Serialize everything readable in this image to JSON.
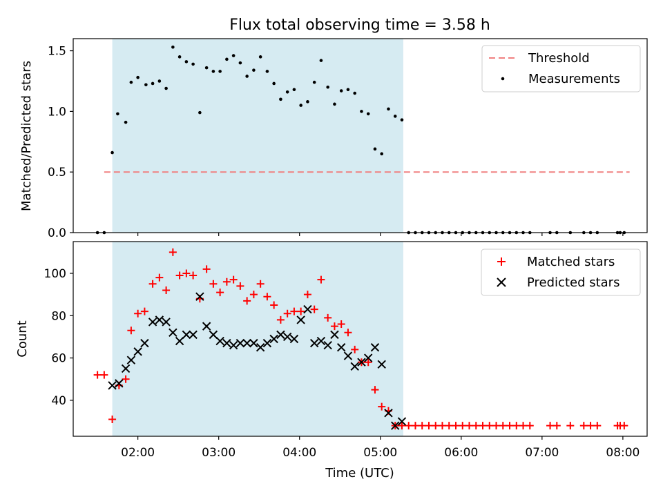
{
  "chart_data": [
    {
      "type": "scatter",
      "title": "Flux total observing time = 3.58 h",
      "xlabel": "",
      "ylabel": "Matched/Predicted stars",
      "xlim": [
        "01:12",
        "08:18"
      ],
      "ylim": [
        0,
        1.6
      ],
      "xticks": [
        "02:00",
        "03:00",
        "04:00",
        "05:00",
        "06:00",
        "07:00",
        "08:00"
      ],
      "yticks": [
        0.0,
        0.5,
        1.0,
        1.5
      ],
      "ytick_labels": [
        "0.0",
        "0.5",
        "1.0",
        "1.5"
      ],
      "grid": false,
      "legend_position": "top-right",
      "shaded_region": {
        "start": "01:41",
        "end": "05:17",
        "color": "#add8e6"
      },
      "series": [
        {
          "name": "Threshold",
          "kind": "dashed-line",
          "color": "#f08080",
          "points": [
            [
              "01:35",
              0.5
            ],
            [
              "08:05",
              0.5
            ]
          ]
        },
        {
          "name": "Measurements",
          "kind": "dots",
          "color": "#000000",
          "points": [
            [
              "01:30",
              0.0
            ],
            [
              "01:35",
              0.0
            ],
            [
              "01:41",
              0.66
            ],
            [
              "01:45",
              0.98
            ],
            [
              "01:51",
              0.91
            ],
            [
              "01:55",
              1.24
            ],
            [
              "02:00",
              1.28
            ],
            [
              "02:06",
              1.22
            ],
            [
              "02:11",
              1.23
            ],
            [
              "02:16",
              1.25
            ],
            [
              "02:21",
              1.19
            ],
            [
              "02:26",
              1.53
            ],
            [
              "02:31",
              1.45
            ],
            [
              "02:36",
              1.41
            ],
            [
              "02:41",
              1.39
            ],
            [
              "02:46",
              0.99
            ],
            [
              "02:51",
              1.36
            ],
            [
              "02:56",
              1.33
            ],
            [
              "03:01",
              1.33
            ],
            [
              "03:06",
              1.43
            ],
            [
              "03:11",
              1.46
            ],
            [
              "03:16",
              1.4
            ],
            [
              "03:21",
              1.29
            ],
            [
              "03:26",
              1.34
            ],
            [
              "03:31",
              1.45
            ],
            [
              "03:36",
              1.33
            ],
            [
              "03:41",
              1.23
            ],
            [
              "03:46",
              1.1
            ],
            [
              "03:51",
              1.16
            ],
            [
              "03:56",
              1.18
            ],
            [
              "04:01",
              1.05
            ],
            [
              "04:06",
              1.08
            ],
            [
              "04:11",
              1.24
            ],
            [
              "04:16",
              1.42
            ],
            [
              "04:21",
              1.2
            ],
            [
              "04:26",
              1.06
            ],
            [
              "04:31",
              1.17
            ],
            [
              "04:36",
              1.18
            ],
            [
              "04:41",
              1.15
            ],
            [
              "04:46",
              1.0
            ],
            [
              "04:51",
              0.98
            ],
            [
              "04:56",
              0.69
            ],
            [
              "05:01",
              0.65
            ],
            [
              "05:06",
              1.02
            ],
            [
              "05:11",
              0.96
            ],
            [
              "05:16",
              0.93
            ],
            [
              "05:21",
              0.0
            ],
            [
              "05:26",
              0.0
            ],
            [
              "05:31",
              0.0
            ],
            [
              "05:36",
              0.0
            ],
            [
              "05:41",
              0.0
            ],
            [
              "05:46",
              0.0
            ],
            [
              "05:51",
              0.0
            ],
            [
              "05:56",
              0.0
            ],
            [
              "06:01",
              0.0
            ],
            [
              "06:06",
              0.0
            ],
            [
              "06:11",
              0.0
            ],
            [
              "06:16",
              0.0
            ],
            [
              "06:21",
              0.0
            ],
            [
              "06:26",
              0.0
            ],
            [
              "06:31",
              0.0
            ],
            [
              "06:36",
              0.0
            ],
            [
              "06:41",
              0.0
            ],
            [
              "06:46",
              0.0
            ],
            [
              "06:51",
              0.0
            ],
            [
              "07:06",
              0.0
            ],
            [
              "07:11",
              0.0
            ],
            [
              "07:21",
              0.0
            ],
            [
              "07:31",
              0.0
            ],
            [
              "07:36",
              0.0
            ],
            [
              "07:41",
              0.0
            ],
            [
              "07:56",
              0.0
            ],
            [
              "07:58",
              0.0
            ],
            [
              "08:01",
              0.0
            ]
          ]
        }
      ]
    },
    {
      "type": "scatter",
      "title": "",
      "xlabel": "Time (UTC)",
      "ylabel": "Count",
      "xlim": [
        "01:12",
        "08:18"
      ],
      "ylim": [
        23,
        115
      ],
      "xticks": [
        "02:00",
        "03:00",
        "04:00",
        "05:00",
        "06:00",
        "07:00",
        "08:00"
      ],
      "yticks": [
        40,
        60,
        80,
        100
      ],
      "ytick_labels": [
        "40",
        "60",
        "80",
        "100"
      ],
      "grid": false,
      "legend_position": "top-right",
      "shaded_region": {
        "start": "01:41",
        "end": "05:17",
        "color": "#add8e6"
      },
      "series": [
        {
          "name": "Matched stars",
          "kind": "plus",
          "color": "#ff0000",
          "points": [
            [
              "01:30",
              52
            ],
            [
              "01:35",
              52
            ],
            [
              "01:41",
              31
            ],
            [
              "01:46",
              47
            ],
            [
              "01:51",
              50
            ],
            [
              "01:55",
              73
            ],
            [
              "02:00",
              81
            ],
            [
              "02:05",
              82
            ],
            [
              "02:11",
              95
            ],
            [
              "02:16",
              98
            ],
            [
              "02:21",
              92
            ],
            [
              "02:26",
              110
            ],
            [
              "02:31",
              99
            ],
            [
              "02:36",
              100
            ],
            [
              "02:41",
              99
            ],
            [
              "02:46",
              88
            ],
            [
              "02:51",
              102
            ],
            [
              "02:56",
              95
            ],
            [
              "03:01",
              91
            ],
            [
              "03:06",
              96
            ],
            [
              "03:11",
              97
            ],
            [
              "03:16",
              94
            ],
            [
              "03:21",
              87
            ],
            [
              "03:26",
              90
            ],
            [
              "03:31",
              95
            ],
            [
              "03:36",
              89
            ],
            [
              "03:41",
              85
            ],
            [
              "03:46",
              78
            ],
            [
              "03:51",
              81
            ],
            [
              "03:56",
              82
            ],
            [
              "04:01",
              82
            ],
            [
              "04:06",
              90
            ],
            [
              "04:11",
              83
            ],
            [
              "04:16",
              97
            ],
            [
              "04:21",
              79
            ],
            [
              "04:26",
              75
            ],
            [
              "04:31",
              76
            ],
            [
              "04:36",
              72
            ],
            [
              "04:41",
              64
            ],
            [
              "04:46",
              58
            ],
            [
              "04:51",
              58
            ],
            [
              "04:56",
              45
            ],
            [
              "05:01",
              37
            ],
            [
              "05:06",
              35
            ],
            [
              "05:11",
              28
            ],
            [
              "05:16",
              28
            ],
            [
              "05:21",
              28
            ],
            [
              "05:26",
              28
            ],
            [
              "05:31",
              28
            ],
            [
              "05:36",
              28
            ],
            [
              "05:41",
              28
            ],
            [
              "05:46",
              28
            ],
            [
              "05:51",
              28
            ],
            [
              "05:56",
              28
            ],
            [
              "06:01",
              28
            ],
            [
              "06:06",
              28
            ],
            [
              "06:11",
              28
            ],
            [
              "06:16",
              28
            ],
            [
              "06:21",
              28
            ],
            [
              "06:26",
              28
            ],
            [
              "06:31",
              28
            ],
            [
              "06:36",
              28
            ],
            [
              "06:41",
              28
            ],
            [
              "06:46",
              28
            ],
            [
              "06:51",
              28
            ],
            [
              "07:06",
              28
            ],
            [
              "07:11",
              28
            ],
            [
              "07:21",
              28
            ],
            [
              "07:31",
              28
            ],
            [
              "07:36",
              28
            ],
            [
              "07:41",
              28
            ],
            [
              "07:56",
              28
            ],
            [
              "07:58",
              28
            ],
            [
              "08:01",
              28
            ]
          ]
        },
        {
          "name": "Predicted stars",
          "kind": "x",
          "color": "#000000",
          "points": [
            [
              "01:41",
              47
            ],
            [
              "01:46",
              48
            ],
            [
              "01:51",
              55
            ],
            [
              "01:55",
              59
            ],
            [
              "02:00",
              63
            ],
            [
              "02:05",
              67
            ],
            [
              "02:11",
              77
            ],
            [
              "02:16",
              78
            ],
            [
              "02:21",
              77
            ],
            [
              "02:26",
              72
            ],
            [
              "02:31",
              68
            ],
            [
              "02:36",
              71
            ],
            [
              "02:41",
              71
            ],
            [
              "02:46",
              89
            ],
            [
              "02:51",
              75
            ],
            [
              "02:56",
              71
            ],
            [
              "03:01",
              68
            ],
            [
              "03:06",
              67
            ],
            [
              "03:11",
              66
            ],
            [
              "03:16",
              67
            ],
            [
              "03:21",
              67
            ],
            [
              "03:26",
              67
            ],
            [
              "03:31",
              65
            ],
            [
              "03:36",
              67
            ],
            [
              "03:41",
              69
            ],
            [
              "03:46",
              71
            ],
            [
              "03:51",
              70
            ],
            [
              "03:56",
              69
            ],
            [
              "04:01",
              78
            ],
            [
              "04:06",
              83
            ],
            [
              "04:11",
              67
            ],
            [
              "04:16",
              68
            ],
            [
              "04:21",
              66
            ],
            [
              "04:26",
              71
            ],
            [
              "04:31",
              65
            ],
            [
              "04:36",
              61
            ],
            [
              "04:41",
              56
            ],
            [
              "04:46",
              58
            ],
            [
              "04:51",
              60
            ],
            [
              "04:56",
              65
            ],
            [
              "05:01",
              57
            ],
            [
              "05:06",
              34
            ],
            [
              "05:11",
              28
            ],
            [
              "05:16",
              30
            ]
          ]
        }
      ]
    }
  ]
}
